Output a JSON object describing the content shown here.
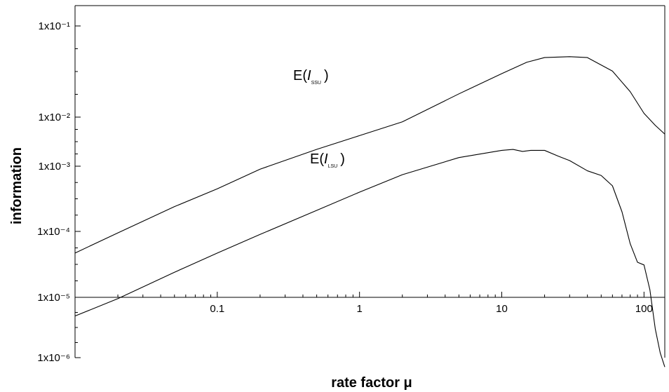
{
  "chart_data": {
    "type": "line",
    "xlabel": "rate factor μ",
    "ylabel": "information",
    "x_scale": "log",
    "y_scale": "log",
    "xlim": [
      0.01,
      140
    ],
    "x_ticks": [
      {
        "value": 0.1,
        "label": "0.1"
      },
      {
        "value": 1,
        "label": "1"
      },
      {
        "value": 10,
        "label": "10"
      },
      {
        "value": 100,
        "label": "100"
      }
    ],
    "y_ticks": [
      {
        "label": "1x10⁻¹"
      },
      {
        "label": "1x10⁻²"
      },
      {
        "label": "1x10⁻³"
      },
      {
        "label": "1x10⁻⁴"
      },
      {
        "label": "1x10⁻⁵"
      },
      {
        "label": "1x10⁻⁶"
      }
    ],
    "grid": false,
    "legend": "none",
    "series": [
      {
        "name": "E(I_SSU)",
        "label_main": "E(",
        "label_italic": "I",
        "label_sub": "SSU",
        "label_close": ")",
        "color": "#000000",
        "points": [
          [
            0.01,
            4.7e-05
          ],
          [
            0.02,
            9.5e-05
          ],
          [
            0.05,
            0.00024
          ],
          [
            0.1,
            0.00045
          ],
          [
            0.2,
            0.0009
          ],
          [
            0.5,
            0.0022
          ],
          [
            1,
            0.0042
          ],
          [
            2,
            0.008
          ],
          [
            5,
            0.018
          ],
          [
            10,
            0.03
          ],
          [
            15,
            0.04
          ],
          [
            20,
            0.045
          ],
          [
            30,
            0.046
          ],
          [
            40,
            0.045
          ],
          [
            60,
            0.032
          ],
          [
            80,
            0.019
          ],
          [
            100,
            0.011
          ],
          [
            120,
            0.0068
          ],
          [
            140,
            0.0045
          ]
        ]
      },
      {
        "name": "E(I_LSU)",
        "label_main": "E(",
        "label_italic": "I",
        "label_sub": "LSU",
        "label_close": ")",
        "color": "#000000",
        "points": [
          [
            0.01,
            4.9e-06
          ],
          [
            0.02,
            9.5e-06
          ],
          [
            0.05,
            2.4e-05
          ],
          [
            0.1,
            4.7e-05
          ],
          [
            0.2,
            9e-05
          ],
          [
            0.5,
            0.00021
          ],
          [
            1,
            0.0004
          ],
          [
            2,
            0.00074
          ],
          [
            5,
            0.0015
          ],
          [
            10,
            0.0021
          ],
          [
            12,
            0.0022
          ],
          [
            14,
            0.002
          ],
          [
            16,
            0.0021
          ],
          [
            20,
            0.0021
          ],
          [
            25,
            0.0016
          ],
          [
            30,
            0.0013
          ],
          [
            40,
            0.00085
          ],
          [
            50,
            0.00072
          ],
          [
            60,
            0.0005
          ],
          [
            70,
            0.0002
          ],
          [
            80,
            6.5e-05
          ],
          [
            90,
            3.4e-05
          ],
          [
            100,
            3.1e-05
          ],
          [
            110,
            1.3e-05
          ],
          [
            120,
            3e-06
          ],
          [
            130,
            1.2e-06
          ],
          [
            140,
            7e-07
          ]
        ]
      }
    ]
  }
}
